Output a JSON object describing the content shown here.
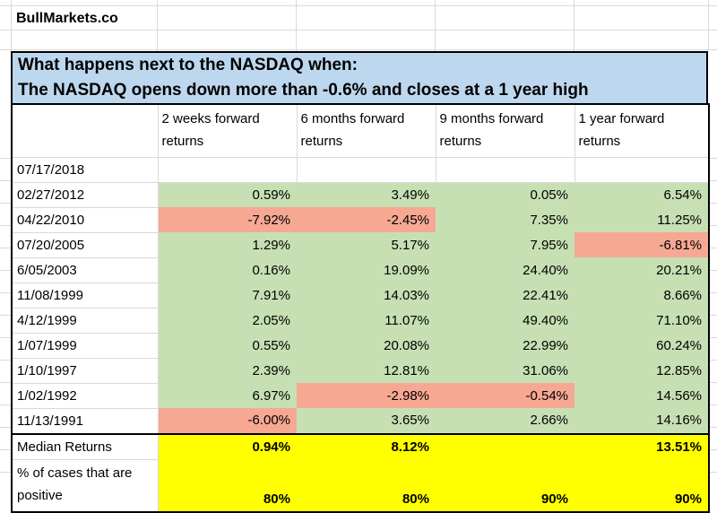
{
  "brand": "BullMarkets.co",
  "title": {
    "line1": "What happens next to the NASDAQ when:",
    "line2": "The NASDAQ opens down more than -0.6% and closes at a 1 year high"
  },
  "table": {
    "columns": [
      "2 weeks forward returns",
      "6 months forward returns",
      "9 months forward returns",
      "1 year forward returns"
    ],
    "rows": [
      {
        "date": "07/17/2018",
        "values": [
          "",
          "",
          "",
          ""
        ],
        "fills": [
          "none",
          "none",
          "none",
          "none"
        ]
      },
      {
        "date": "02/27/2012",
        "values": [
          "0.59%",
          "3.49%",
          "0.05%",
          "6.54%"
        ],
        "fills": [
          "green",
          "green",
          "green",
          "green"
        ]
      },
      {
        "date": "04/22/2010",
        "values": [
          "-7.92%",
          "-2.45%",
          "7.35%",
          "11.25%"
        ],
        "fills": [
          "red",
          "red",
          "green",
          "green"
        ]
      },
      {
        "date": "07/20/2005",
        "values": [
          "1.29%",
          "5.17%",
          "7.95%",
          "-6.81%"
        ],
        "fills": [
          "green",
          "green",
          "green",
          "red"
        ]
      },
      {
        "date": "6/05/2003",
        "values": [
          "0.16%",
          "19.09%",
          "24.40%",
          "20.21%"
        ],
        "fills": [
          "green",
          "green",
          "green",
          "green"
        ]
      },
      {
        "date": "11/08/1999",
        "values": [
          "7.91%",
          "14.03%",
          "22.41%",
          "8.66%"
        ],
        "fills": [
          "green",
          "green",
          "green",
          "green"
        ]
      },
      {
        "date": "4/12/1999",
        "values": [
          "2.05%",
          "11.07%",
          "49.40%",
          "71.10%"
        ],
        "fills": [
          "green",
          "green",
          "green",
          "green"
        ]
      },
      {
        "date": "1/07/1999",
        "values": [
          "0.55%",
          "20.08%",
          "22.99%",
          "60.24%"
        ],
        "fills": [
          "green",
          "green",
          "green",
          "green"
        ]
      },
      {
        "date": "1/10/1997",
        "values": [
          "2.39%",
          "12.81%",
          "31.06%",
          "12.85%"
        ],
        "fills": [
          "green",
          "green",
          "green",
          "green"
        ]
      },
      {
        "date": "1/02/1992",
        "values": [
          "6.97%",
          "-2.98%",
          "-0.54%",
          "14.56%"
        ],
        "fills": [
          "green",
          "red",
          "red",
          "green"
        ]
      },
      {
        "date": "11/13/1991",
        "values": [
          "-6.00%",
          "3.65%",
          "2.66%",
          "14.16%"
        ],
        "fills": [
          "red",
          "green",
          "green",
          "green"
        ]
      }
    ],
    "summary": [
      {
        "label": "Median Returns",
        "values": [
          "0.94%",
          "8.12%",
          "",
          "13.51%"
        ]
      },
      {
        "label": "% of cases that are positive",
        "values": [
          "80%",
          "80%",
          "90%",
          "90%"
        ]
      }
    ]
  },
  "colors": {
    "title_blue": "#BDD7EE",
    "green": "#C6E0B4",
    "red": "#F6A893",
    "yellow": "#FFFF00",
    "grid": "#D9D9D9",
    "border": "#000000"
  }
}
